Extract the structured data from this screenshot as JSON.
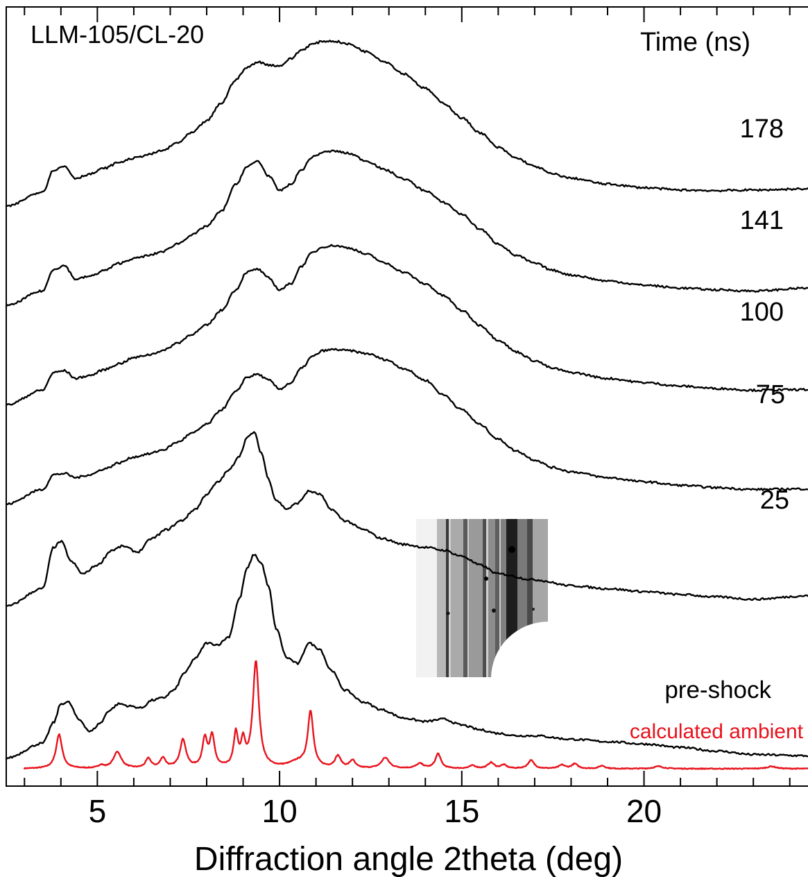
{
  "chart_data": {
    "type": "line",
    "title": "LLM-105/CL-20",
    "legend_title": "Time (ns)",
    "xlabel": "Diffraction angle 2theta (deg)",
    "ylabel": "",
    "xlim": [
      2.5,
      24.5
    ],
    "x_ticks": [
      5,
      10,
      15,
      20
    ],
    "x_tick_labels": [
      "5",
      "10",
      "15",
      "20"
    ],
    "y_axis_visible": false,
    "grid": false,
    "legend_placement": "series labels at right end of each trace",
    "series": [
      {
        "name": "calculated ambient",
        "color": "#e8121c",
        "kind": "peaks",
        "x_start": 3.0,
        "x_end": 24.5,
        "baseline": 0.0,
        "peaks": [
          {
            "x": 3.95,
            "h": 0.58,
            "w": 0.1
          },
          {
            "x": 5.1,
            "h": 0.05,
            "w": 0.08
          },
          {
            "x": 5.55,
            "h": 0.28,
            "w": 0.13
          },
          {
            "x": 6.4,
            "h": 0.16,
            "w": 0.09
          },
          {
            "x": 6.8,
            "h": 0.17,
            "w": 0.09
          },
          {
            "x": 7.35,
            "h": 0.48,
            "w": 0.1
          },
          {
            "x": 7.95,
            "h": 0.48,
            "w": 0.08
          },
          {
            "x": 8.15,
            "h": 0.52,
            "w": 0.08
          },
          {
            "x": 8.8,
            "h": 0.56,
            "w": 0.07
          },
          {
            "x": 9.0,
            "h": 0.4,
            "w": 0.07
          },
          {
            "x": 9.35,
            "h": 1.8,
            "w": 0.1
          },
          {
            "x": 10.5,
            "h": 0.1,
            "w": 0.3
          },
          {
            "x": 10.85,
            "h": 0.94,
            "w": 0.09
          },
          {
            "x": 11.6,
            "h": 0.2,
            "w": 0.1
          },
          {
            "x": 12.0,
            "h": 0.13,
            "w": 0.09
          },
          {
            "x": 12.9,
            "h": 0.18,
            "w": 0.13
          },
          {
            "x": 13.85,
            "h": 0.08,
            "w": 0.12
          },
          {
            "x": 14.35,
            "h": 0.25,
            "w": 0.09
          },
          {
            "x": 15.3,
            "h": 0.05,
            "w": 0.1
          },
          {
            "x": 15.8,
            "h": 0.1,
            "w": 0.1
          },
          {
            "x": 16.15,
            "h": 0.06,
            "w": 0.1
          },
          {
            "x": 16.9,
            "h": 0.14,
            "w": 0.1
          },
          {
            "x": 17.75,
            "h": 0.06,
            "w": 0.1
          },
          {
            "x": 18.1,
            "h": 0.08,
            "w": 0.1
          },
          {
            "x": 18.85,
            "h": 0.05,
            "w": 0.1
          },
          {
            "x": 20.4,
            "h": 0.04,
            "w": 0.15
          },
          {
            "x": 23.5,
            "h": 0.04,
            "w": 0.15
          }
        ]
      },
      {
        "name": "pre-shock",
        "color": "#000000",
        "kind": "trace",
        "offset": 0.18,
        "x": [
          2.5,
          3.5,
          3.8,
          4.0,
          4.2,
          4.5,
          4.8,
          5.1,
          5.3,
          5.6,
          5.9,
          6.2,
          6.5,
          6.8,
          7.1,
          7.4,
          7.7,
          8.0,
          8.3,
          8.6,
          8.9,
          9.1,
          9.3,
          9.5,
          9.7,
          9.9,
          10.2,
          10.5,
          10.8,
          11.1,
          11.4,
          11.8,
          12.3,
          12.8,
          13.4,
          14.0,
          14.5,
          15.0,
          15.5,
          16.0,
          16.5,
          17.0,
          18.0,
          19.0,
          20.0,
          21.0,
          22.0,
          23.0,
          24.5
        ],
        "values": [
          0.0,
          0.25,
          0.6,
          0.92,
          0.95,
          0.65,
          0.45,
          0.6,
          0.8,
          0.92,
          0.88,
          0.85,
          0.98,
          1.02,
          1.15,
          1.45,
          1.7,
          1.95,
          1.92,
          2.05,
          2.7,
          3.2,
          3.45,
          3.3,
          2.9,
          2.2,
          1.7,
          1.6,
          1.95,
          1.85,
          1.5,
          1.15,
          0.95,
          0.82,
          0.68,
          0.62,
          0.66,
          0.56,
          0.48,
          0.42,
          0.38,
          0.38,
          0.32,
          0.28,
          0.24,
          0.18,
          0.12,
          0.06,
          0.04
        ]
      },
      {
        "name": "25",
        "color": "#000000",
        "kind": "trace",
        "offset": 2.75,
        "x": [
          2.5,
          3.5,
          3.8,
          4.0,
          4.3,
          4.6,
          5.0,
          5.4,
          5.7,
          6.1,
          6.5,
          6.9,
          7.3,
          7.7,
          8.0,
          8.3,
          8.6,
          8.9,
          9.1,
          9.3,
          9.5,
          9.7,
          9.9,
          10.2,
          10.5,
          10.8,
          11.1,
          11.4,
          11.8,
          12.3,
          12.8,
          13.4,
          14.0,
          14.5,
          15.0,
          15.5,
          16.0,
          17.0,
          18.0,
          19.0,
          20.0,
          21.0,
          22.0,
          23.0,
          24.5
        ],
        "values": [
          0.0,
          0.3,
          1.0,
          1.1,
          0.75,
          0.55,
          0.7,
          0.95,
          1.02,
          0.92,
          1.15,
          1.3,
          1.45,
          1.65,
          1.9,
          2.1,
          2.3,
          2.55,
          2.85,
          2.95,
          2.6,
          2.15,
          1.8,
          1.65,
          1.75,
          1.95,
          1.9,
          1.65,
          1.45,
          1.3,
          1.15,
          1.05,
          1.0,
          0.95,
          0.85,
          0.7,
          0.55,
          0.45,
          0.35,
          0.3,
          0.25,
          0.2,
          0.16,
          0.12,
          0.18
        ]
      },
      {
        "name": "75",
        "color": "#000000",
        "kind": "trace",
        "offset": 4.48,
        "x": [
          2.5,
          3.5,
          3.8,
          4.1,
          4.4,
          4.8,
          5.2,
          5.6,
          6.0,
          6.4,
          6.8,
          7.2,
          7.6,
          8.0,
          8.4,
          8.8,
          9.1,
          9.4,
          9.7,
          10.0,
          10.3,
          10.6,
          10.9,
          11.2,
          11.5,
          11.9,
          12.4,
          12.9,
          13.4,
          14.0,
          14.5,
          15.0,
          15.5,
          16.0,
          16.5,
          17.0,
          17.5,
          18.0,
          19.0,
          20.0,
          21.0,
          22.0,
          23.0,
          24.5
        ],
        "values": [
          0.0,
          0.25,
          0.5,
          0.52,
          0.45,
          0.5,
          0.6,
          0.7,
          0.8,
          0.85,
          0.92,
          1.05,
          1.2,
          1.35,
          1.6,
          1.9,
          2.15,
          2.2,
          2.1,
          1.95,
          2.05,
          2.3,
          2.5,
          2.6,
          2.62,
          2.6,
          2.55,
          2.45,
          2.3,
          2.1,
          1.85,
          1.6,
          1.35,
          1.1,
          0.9,
          0.75,
          0.62,
          0.55,
          0.45,
          0.38,
          0.32,
          0.28,
          0.25,
          0.26
        ]
      },
      {
        "name": "100",
        "color": "#000000",
        "kind": "trace",
        "offset": 6.16,
        "x": [
          2.5,
          3.5,
          3.8,
          4.1,
          4.4,
          4.8,
          5.2,
          5.6,
          6.0,
          6.4,
          6.8,
          7.2,
          7.6,
          8.0,
          8.4,
          8.8,
          9.1,
          9.4,
          9.7,
          10.0,
          10.3,
          10.6,
          10.9,
          11.2,
          11.5,
          11.9,
          12.4,
          12.9,
          13.4,
          14.0,
          14.5,
          15.0,
          15.5,
          16.0,
          16.5,
          17.0,
          17.5,
          18.0,
          19.0,
          20.0,
          21.0,
          22.0,
          23.0,
          24.5
        ],
        "values": [
          0.0,
          0.25,
          0.55,
          0.58,
          0.45,
          0.5,
          0.6,
          0.7,
          0.8,
          0.85,
          0.92,
          1.05,
          1.2,
          1.35,
          1.6,
          1.95,
          2.25,
          2.3,
          2.15,
          1.95,
          2.05,
          2.35,
          2.58,
          2.68,
          2.7,
          2.66,
          2.55,
          2.4,
          2.25,
          2.05,
          1.85,
          1.6,
          1.35,
          1.1,
          0.9,
          0.75,
          0.62,
          0.55,
          0.45,
          0.38,
          0.32,
          0.28,
          0.25,
          0.26
        ]
      },
      {
        "name": "141",
        "color": "#000000",
        "kind": "trace",
        "offset": 7.84,
        "x": [
          2.5,
          3.5,
          3.8,
          4.1,
          4.4,
          4.8,
          5.2,
          5.6,
          6.0,
          6.4,
          6.8,
          7.2,
          7.6,
          8.0,
          8.4,
          8.8,
          9.1,
          9.4,
          9.7,
          10.0,
          10.3,
          10.6,
          10.9,
          11.2,
          11.5,
          11.9,
          12.4,
          12.9,
          13.4,
          14.0,
          14.5,
          15.0,
          15.5,
          16.0,
          16.5,
          17.0,
          17.5,
          18.0,
          19.0,
          20.0,
          21.0,
          22.0,
          23.0,
          24.5
        ],
        "values": [
          0.0,
          0.25,
          0.62,
          0.68,
          0.45,
          0.5,
          0.6,
          0.72,
          0.8,
          0.85,
          0.92,
          1.05,
          1.2,
          1.35,
          1.6,
          2.05,
          2.35,
          2.45,
          2.2,
          1.95,
          2.05,
          2.3,
          2.52,
          2.6,
          2.62,
          2.58,
          2.45,
          2.3,
          2.15,
          1.95,
          1.75,
          1.55,
          1.3,
          1.05,
          0.85,
          0.72,
          0.6,
          0.52,
          0.42,
          0.35,
          0.3,
          0.27,
          0.25,
          0.3
        ]
      },
      {
        "name": "178",
        "color": "#000000",
        "kind": "trace",
        "offset": 9.52,
        "x": [
          2.5,
          3.5,
          3.8,
          4.1,
          4.4,
          4.8,
          5.2,
          5.6,
          6.0,
          6.4,
          6.8,
          7.2,
          7.6,
          8.0,
          8.4,
          8.8,
          9.1,
          9.4,
          9.7,
          10.0,
          10.3,
          10.6,
          10.9,
          11.2,
          11.5,
          11.9,
          12.4,
          12.9,
          13.4,
          14.0,
          14.5,
          15.0,
          15.5,
          16.0,
          16.5,
          17.0,
          17.5,
          18.0,
          19.0,
          20.0,
          21.0,
          22.0,
          23.0,
          24.5
        ],
        "values": [
          0.0,
          0.25,
          0.62,
          0.68,
          0.48,
          0.55,
          0.65,
          0.75,
          0.82,
          0.88,
          0.95,
          1.08,
          1.25,
          1.45,
          1.75,
          2.15,
          2.35,
          2.45,
          2.4,
          2.38,
          2.5,
          2.65,
          2.75,
          2.8,
          2.8,
          2.75,
          2.62,
          2.45,
          2.25,
          2.0,
          1.75,
          1.5,
          1.25,
          1.0,
          0.82,
          0.68,
          0.55,
          0.48,
          0.38,
          0.32,
          0.28,
          0.27,
          0.28,
          0.3
        ]
      }
    ],
    "series_labels": [
      {
        "series": "178",
        "text": "178"
      },
      {
        "series": "141",
        "text": "141"
      },
      {
        "series": "100",
        "text": "100"
      },
      {
        "series": "75",
        "text": "75"
      },
      {
        "series": "25",
        "text": "25"
      },
      {
        "series": "pre-shock",
        "text": "pre-shock"
      },
      {
        "series": "calculated ambient",
        "text": "calculated ambient"
      }
    ],
    "inset": {
      "kind": "diffraction-image",
      "color_scale": "grayscale"
    },
    "y_scale": {
      "min": 0,
      "max": 12.9
    }
  }
}
